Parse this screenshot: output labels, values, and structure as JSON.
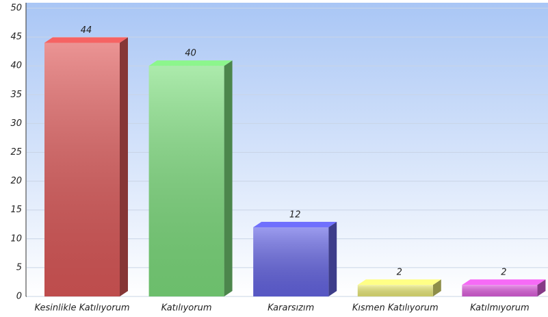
{
  "chart_data": {
    "type": "bar",
    "categories": [
      "Kesinlikle Katılıyorum",
      "Katılıyorum",
      "Kararsızım",
      "Kısmen Katılıyorum",
      "Katılmıyorum"
    ],
    "values": [
      44,
      40,
      12,
      2,
      2
    ],
    "colors": [
      "#e05a5a",
      "#7fe07f",
      "#6666e6",
      "#ecec7a",
      "#e060e0"
    ],
    "ylim": [
      0,
      50
    ],
    "yticks": [
      0,
      5,
      10,
      15,
      20,
      25,
      30,
      35,
      40,
      45,
      50
    ],
    "grid": true
  }
}
